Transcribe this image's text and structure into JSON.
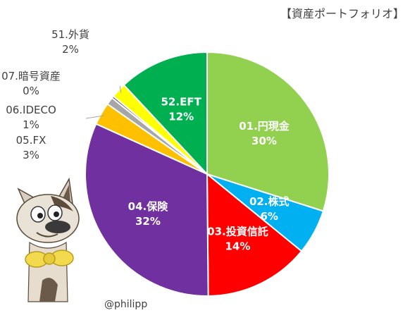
{
  "title": "【資産ポートフォリオ】",
  "credit": "@philipp",
  "chart_data": {
    "type": "pie",
    "title": "【資産ポートフォリオ】",
    "start": "12 o'clock, clockwise",
    "slices": [
      {
        "label": "01.円現金",
        "value": 30,
        "pct": "30%",
        "color": "#92D050",
        "label_inside": true
      },
      {
        "label": "02.株式",
        "value": 6,
        "pct": "6%",
        "color": "#00B0F0",
        "label_inside": true
      },
      {
        "label": "03.投資信託",
        "value": 14,
        "pct": "14%",
        "color": "#FF0000",
        "label_inside": true
      },
      {
        "label": "04.保険",
        "value": 32,
        "pct": "32%",
        "color": "#7030A0",
        "label_inside": true
      },
      {
        "label": "05.FX",
        "value": 3,
        "pct": "3%",
        "color": "#FFC000",
        "label_inside": false
      },
      {
        "label": "06.IDECO",
        "value": 1,
        "pct": "1%",
        "color": "#A6A6A6",
        "label_inside": false
      },
      {
        "label": "07.暗号資産",
        "value": 0.3,
        "pct": "0%",
        "color": "#595959",
        "label_inside": false
      },
      {
        "label": "51.外貨",
        "value": 2,
        "pct": "2%",
        "color": "#FFFF00",
        "label_inside": false
      },
      {
        "label": "52.EFT",
        "value": 12,
        "pct": "12%",
        "color": "#00B050",
        "label_inside": true
      }
    ]
  },
  "mascot": {
    "icon": "cat-mascot-icon"
  }
}
